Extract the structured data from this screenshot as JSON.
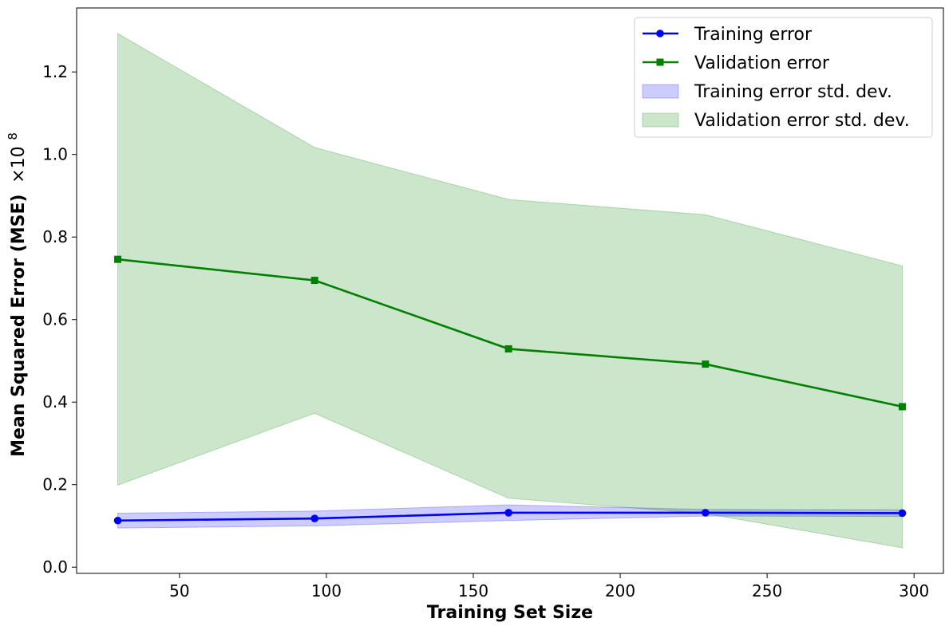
{
  "chart_data": {
    "type": "line",
    "title": "",
    "xlabel": "Training Set Size",
    "ylabel": "Mean Squared Error (MSE)",
    "y_scale_label": "×10",
    "y_scale_exp": "8",
    "xlim": [
      15,
      310
    ],
    "ylim": [
      -0.015,
      1.355
    ],
    "x_ticks": [
      50,
      100,
      150,
      200,
      250,
      300
    ],
    "y_ticks": [
      0.0,
      0.2,
      0.4,
      0.6,
      0.8,
      1.0,
      1.2
    ],
    "y_tick_labels": [
      "0.0",
      "0.2",
      "0.4",
      "0.6",
      "0.8",
      "1.0",
      "1.2"
    ],
    "x": [
      29,
      96,
      162,
      229,
      296
    ],
    "grid": false,
    "legend_position": "top-right",
    "series": [
      {
        "name": "Training error",
        "values": [
          0.113,
          0.118,
          0.132,
          0.132,
          0.131
        ],
        "color": "#0000ff",
        "marker": "circle"
      },
      {
        "name": "Validation error",
        "values": [
          0.746,
          0.695,
          0.529,
          0.492,
          0.389
        ],
        "color": "#008000",
        "marker": "square"
      }
    ],
    "bands": [
      {
        "name": "Training error std. dev.",
        "lower": [
          0.095,
          0.1,
          0.113,
          0.124,
          0.123
        ],
        "upper": [
          0.131,
          0.136,
          0.151,
          0.14,
          0.139
        ],
        "color": "#0000ff",
        "opacity": 0.2
      },
      {
        "name": "Validation error std. dev.",
        "lower": [
          0.199,
          0.373,
          0.167,
          0.13,
          0.047
        ],
        "upper": [
          1.293,
          1.017,
          0.891,
          0.854,
          0.73
        ],
        "color": "#008000",
        "opacity": 0.2
      }
    ]
  }
}
